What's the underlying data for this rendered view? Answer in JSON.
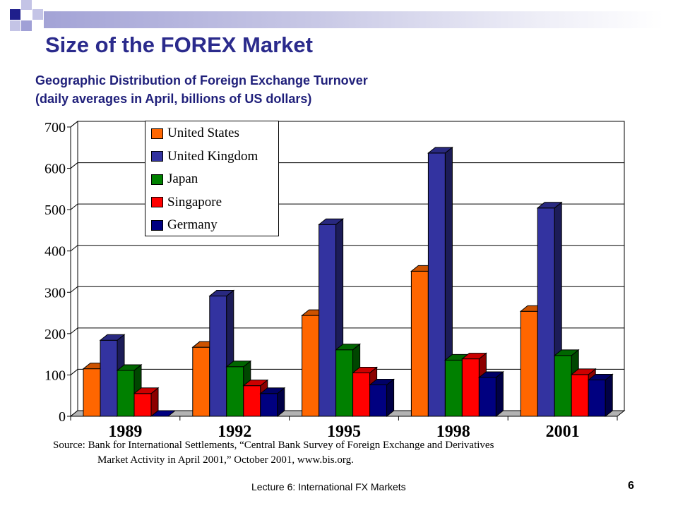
{
  "slide": {
    "title": "Size of the FOREX Market",
    "subtitle_line1": "Geographic Distribution of Foreign Exchange Turnover",
    "subtitle_line2": "(daily averages in April, billions of US dollars)",
    "source_line1": "Source: Bank for International Settlements, “Central Bank Survey of Foreign Exchange and Derivatives",
    "source_line2": "Market Activity in April 2001,” October 2001, www.bis.org.",
    "footer": "Lecture 6: International FX Markets",
    "page_number": "6"
  },
  "chart_data": {
    "type": "bar",
    "title": "",
    "xlabel": "",
    "ylabel": "",
    "categories": [
      "1989",
      "1992",
      "1995",
      "1998",
      "2001"
    ],
    "ylim": [
      0,
      700
    ],
    "yticks": [
      0,
      100,
      200,
      300,
      400,
      500,
      600,
      700
    ],
    "grid": true,
    "legend_position": "top-left",
    "series": [
      {
        "name": "United States",
        "color": "#ff6600",
        "values": [
          115,
          167,
          244,
          351,
          254
        ]
      },
      {
        "name": "United Kingdom",
        "color": "#3333a0",
        "values": [
          184,
          291,
          464,
          637,
          504
        ]
      },
      {
        "name": "Japan",
        "color": "#008000",
        "values": [
          111,
          120,
          161,
          136,
          147
        ]
      },
      {
        "name": "Singapore",
        "color": "#ff0000",
        "values": [
          55,
          74,
          105,
          139,
          101
        ]
      },
      {
        "name": "Germany",
        "color": "#000080",
        "values": [
          0,
          55,
          76,
          94,
          88
        ]
      }
    ]
  }
}
